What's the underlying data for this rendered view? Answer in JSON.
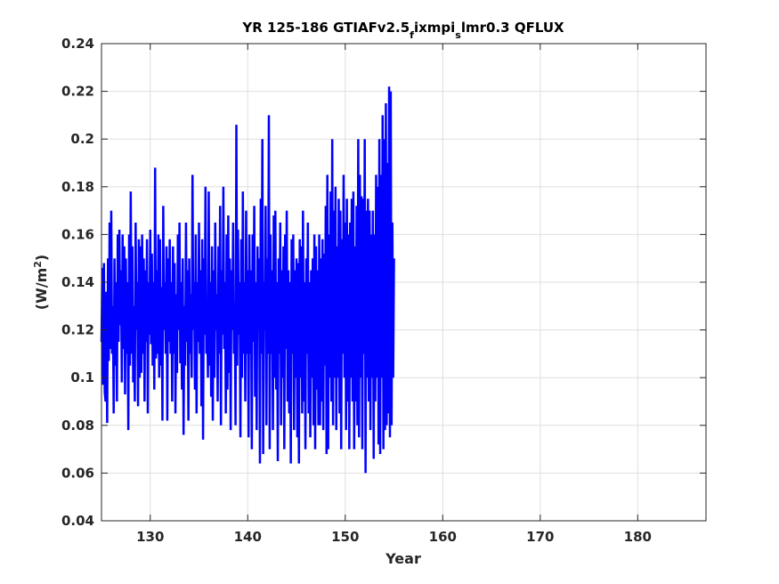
{
  "chart_data": {
    "type": "line",
    "title": {
      "part1": "YR 125-186 GTIAFv2.5",
      "sub1": "f",
      "part2": "ixmpi",
      "sub2": "s",
      "part3": "lmr0.3 QFLUX"
    },
    "xlabel": "Year",
    "ylabel": {
      "main": "(W/m",
      "sup": "2",
      "close": ")"
    },
    "xlim": [
      125,
      187
    ],
    "ylim": [
      0.04,
      0.24
    ],
    "xticks": [
      130,
      140,
      150,
      160,
      170,
      180
    ],
    "xtick_labels": [
      "130",
      "140",
      "150",
      "160",
      "170",
      "180"
    ],
    "yticks": [
      0.04,
      0.06,
      0.08,
      0.1,
      0.12,
      0.14,
      0.16,
      0.18,
      0.2,
      0.22,
      0.24
    ],
    "ytick_labels": [
      "0.04",
      "0.06",
      "0.08",
      "0.1",
      "0.12",
      "0.14",
      "0.16",
      "0.18",
      "0.2",
      "0.22",
      "0.24"
    ],
    "grid": true,
    "line_color": "#0000ff",
    "series": [
      {
        "x_start": 125,
        "step": 0.0833333,
        "values": [
          0.115,
          0.146,
          0.097,
          0.148,
          0.094,
          0.09,
          0.136,
          0.081,
          0.15,
          0.107,
          0.165,
          0.112,
          0.17,
          0.11,
          0.13,
          0.085,
          0.15,
          0.105,
          0.14,
          0.09,
          0.16,
          0.115,
          0.162,
          0.122,
          0.145,
          0.098,
          0.16,
          0.112,
          0.155,
          0.093,
          0.15,
          0.11,
          0.14,
          0.078,
          0.16,
          0.105,
          0.178,
          0.11,
          0.155,
          0.098,
          0.13,
          0.09,
          0.165,
          0.12,
          0.14,
          0.088,
          0.158,
          0.1,
          0.155,
          0.102,
          0.16,
          0.11,
          0.15,
          0.09,
          0.145,
          0.115,
          0.158,
          0.085,
          0.14,
          0.118,
          0.162,
          0.114,
          0.152,
          0.105,
          0.14,
          0.095,
          0.188,
          0.108,
          0.145,
          0.11,
          0.16,
          0.1,
          0.158,
          0.105,
          0.138,
          0.082,
          0.172,
          0.12,
          0.14,
          0.11,
          0.155,
          0.082,
          0.15,
          0.115,
          0.158,
          0.11,
          0.14,
          0.09,
          0.155,
          0.11,
          0.148,
          0.085,
          0.135,
          0.102,
          0.16,
          0.12,
          0.165,
          0.106,
          0.14,
          0.095,
          0.15,
          0.076,
          0.13,
          0.105,
          0.165,
          0.115,
          0.145,
          0.082,
          0.15,
          0.11,
          0.135,
          0.1,
          0.185,
          0.12,
          0.14,
          0.095,
          0.16,
          0.085,
          0.14,
          0.115,
          0.165,
          0.11,
          0.145,
          0.088,
          0.158,
          0.074,
          0.15,
          0.118,
          0.18,
          0.11,
          0.13,
          0.1,
          0.178,
          0.105,
          0.14,
          0.092,
          0.155,
          0.082,
          0.145,
          0.1,
          0.165,
          0.12,
          0.135,
          0.09,
          0.155,
          0.11,
          0.172,
          0.08,
          0.145,
          0.118,
          0.18,
          0.112,
          0.14,
          0.085,
          0.16,
          0.095,
          0.168,
          0.102,
          0.15,
          0.078,
          0.145,
          0.12,
          0.165,
          0.11,
          0.13,
          0.08,
          0.206,
          0.105,
          0.162,
          0.118,
          0.14,
          0.075,
          0.158,
          0.1,
          0.178,
          0.11,
          0.14,
          0.09,
          0.17,
          0.11,
          0.145,
          0.075,
          0.16,
          0.11,
          0.145,
          0.07,
          0.16,
          0.115,
          0.172,
          0.092,
          0.14,
          0.078,
          0.155,
          0.12,
          0.15,
          0.064,
          0.175,
          0.11,
          0.2,
          0.068,
          0.14,
          0.12,
          0.172,
          0.08,
          0.15,
          0.11,
          0.21,
          0.07,
          0.16,
          0.11,
          0.145,
          0.078,
          0.168,
          0.1,
          0.17,
          0.095,
          0.14,
          0.065,
          0.15,
          0.11,
          0.165,
          0.08,
          0.145,
          0.1,
          0.155,
          0.07,
          0.16,
          0.112,
          0.17,
          0.09,
          0.145,
          0.085,
          0.14,
          0.064,
          0.158,
          0.11,
          0.16,
          0.078,
          0.145,
          0.1,
          0.15,
          0.075,
          0.148,
          0.064,
          0.158,
          0.1,
          0.155,
          0.085,
          0.17,
          0.09,
          0.14,
          0.07,
          0.15,
          0.11,
          0.165,
          0.085,
          0.14,
          0.075,
          0.145,
          0.1,
          0.15,
          0.08,
          0.16,
          0.07,
          0.155,
          0.095,
          0.145,
          0.08,
          0.16,
          0.08,
          0.15,
          0.09,
          0.158,
          0.078,
          0.152,
          0.105,
          0.172,
          0.068,
          0.185,
          0.07,
          0.16,
          0.1,
          0.178,
          0.09,
          0.2,
          0.08,
          0.17,
          0.1,
          0.18,
          0.078,
          0.155,
          0.1,
          0.175,
          0.085,
          0.17,
          0.07,
          0.158,
          0.11,
          0.185,
          0.1,
          0.165,
          0.078,
          0.175,
          0.09,
          0.16,
          0.07,
          0.165,
          0.1,
          0.175,
          0.09,
          0.178,
          0.07,
          0.155,
          0.09,
          0.172,
          0.08,
          0.2,
          0.075,
          0.185,
          0.1,
          0.176,
          0.07,
          0.175,
          0.11,
          0.2,
          0.06,
          0.17,
          0.1,
          0.175,
          0.09,
          0.17,
          0.078,
          0.16,
          0.1,
          0.17,
          0.066,
          0.16,
          0.09,
          0.185,
          0.1,
          0.18,
          0.072,
          0.2,
          0.068,
          0.185,
          0.1,
          0.21,
          0.07,
          0.2,
          0.078,
          0.215,
          0.08,
          0.19,
          0.085,
          0.222,
          0.075,
          0.22,
          0.08,
          0.165,
          0.1,
          0.15
        ]
      }
    ]
  }
}
